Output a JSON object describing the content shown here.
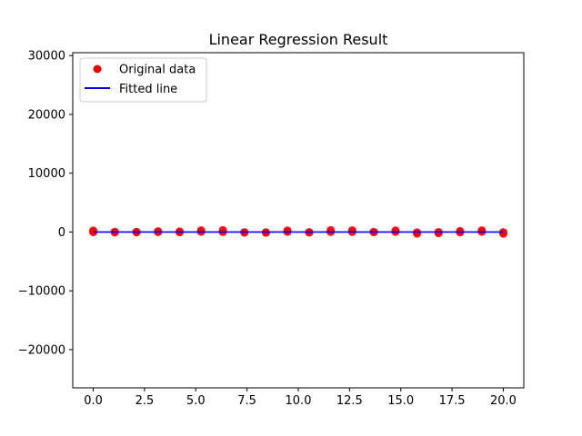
{
  "chart_data": {
    "type": "scatter",
    "title": "Linear Regression Result",
    "xlabel": "",
    "ylabel": "",
    "xlim": [
      -1.0,
      21.0
    ],
    "ylim": [
      -26500,
      30500
    ],
    "x_ticks": [
      0.0,
      2.5,
      5.0,
      7.5,
      10.0,
      12.5,
      15.0,
      17.5,
      20.0
    ],
    "x_tick_labels": [
      "0.0",
      "2.5",
      "5.0",
      "7.5",
      "10.0",
      "12.5",
      "15.0",
      "17.5",
      "20.0"
    ],
    "y_ticks": [
      -20000,
      -10000,
      0,
      10000,
      20000,
      30000
    ],
    "y_tick_labels": [
      "−20000",
      "−10000",
      "0",
      "10000",
      "20000",
      "30000"
    ],
    "grid": false,
    "legend_placement": "top-left",
    "series": [
      {
        "name": "Original data",
        "kind": "points",
        "color": "#ff0000",
        "x": [
          0.0,
          0.0,
          1.05,
          1.05,
          2.11,
          2.11,
          3.16,
          3.16,
          4.21,
          4.21,
          5.26,
          5.26,
          6.32,
          6.32,
          7.37,
          7.37,
          8.42,
          8.42,
          9.47,
          9.47,
          10.53,
          10.53,
          11.58,
          11.58,
          12.63,
          12.63,
          13.68,
          13.68,
          14.74,
          14.74,
          15.79,
          15.79,
          16.84,
          16.84,
          17.89,
          17.89,
          18.95,
          18.95,
          20.0,
          20.0
        ],
        "y": [
          250,
          -20,
          40,
          -60,
          30,
          -40,
          120,
          0,
          -30,
          80,
          280,
          50,
          320,
          10,
          -40,
          -90,
          -50,
          -110,
          260,
          30,
          -30,
          -80,
          320,
          20,
          290,
          20,
          20,
          -20,
          260,
          30,
          -60,
          -260,
          0,
          -200,
          160,
          -40,
          280,
          50,
          -20,
          -280
        ]
      },
      {
        "name": "Fitted line",
        "kind": "line",
        "color": "#0000ff",
        "x": [
          0.0,
          20.0
        ],
        "y": [
          0,
          0
        ]
      }
    ]
  }
}
